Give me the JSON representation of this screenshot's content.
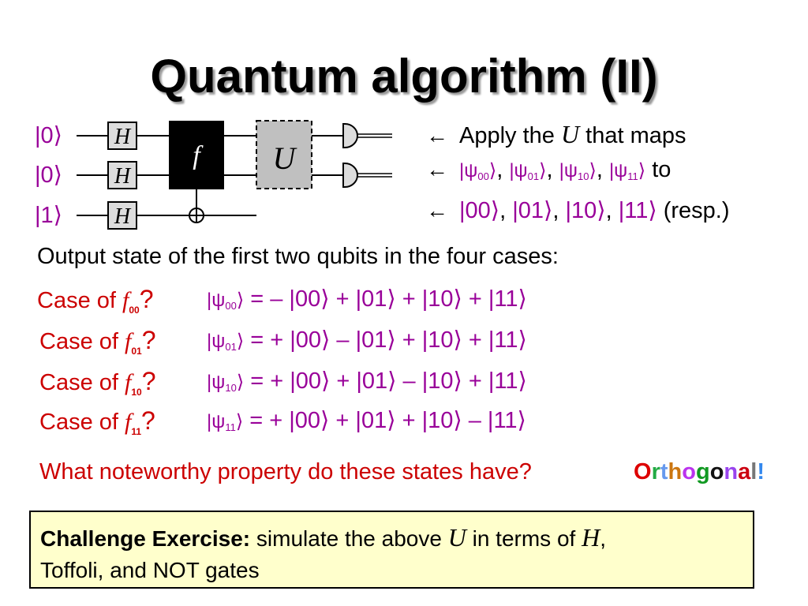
{
  "title": "Quantum algorithm (II)",
  "circuit": {
    "inputs": [
      "|0⟩",
      "|0⟩",
      "|1⟩"
    ],
    "hadamard_label": "H",
    "oracle_label": "f",
    "unitary_label": "U"
  },
  "notes": [
    {
      "parts": [
        {
          "t": "Apply the "
        },
        {
          "t": "U",
          "i": true
        },
        {
          "t": " that maps"
        }
      ]
    },
    {
      "parts": [
        {
          "t": "|ψ",
          "p": true
        },
        {
          "t": "00",
          "p": true,
          "s": true
        },
        {
          "t": "⟩",
          "p": true
        },
        {
          "t": ", "
        },
        {
          "t": "|ψ",
          "p": true
        },
        {
          "t": "01",
          "p": true,
          "s": true
        },
        {
          "t": "⟩",
          "p": true
        },
        {
          "t": ", "
        },
        {
          "t": "|ψ",
          "p": true
        },
        {
          "t": "10",
          "p": true,
          "s": true
        },
        {
          "t": "⟩",
          "p": true
        },
        {
          "t": ", "
        },
        {
          "t": "|ψ",
          "p": true
        },
        {
          "t": "11",
          "p": true,
          "s": true
        },
        {
          "t": "⟩",
          "p": true
        },
        {
          "t": "  to"
        }
      ]
    },
    {
      "parts": [
        {
          "t": "|00⟩",
          "p": true
        },
        {
          "t": ", "
        },
        {
          "t": "|01⟩",
          "p": true
        },
        {
          "t": ", "
        },
        {
          "t": "|10⟩",
          "p": true
        },
        {
          "t": ", "
        },
        {
          "t": "|11⟩",
          "p": true
        },
        {
          "t": "  (resp.)"
        }
      ]
    }
  ],
  "output_heading": "Output state of the first two qubits in the four cases:",
  "cases": [
    {
      "label": "Case of ",
      "f": "f",
      "sub": "00",
      "q": "?",
      "psi_sub": "00",
      "equation": " = – |00⟩ + |01⟩ + |10⟩ + |11⟩"
    },
    {
      "label": "Case of ",
      "f": "f",
      "sub": "01",
      "q": "?",
      "psi_sub": "01",
      "equation": " = + |00⟩ – |01⟩ + |10⟩ + |11⟩"
    },
    {
      "label": "Case of ",
      "f": "f",
      "sub": "10",
      "q": "?",
      "psi_sub": "10",
      "equation": " = + |00⟩ + |01⟩ – |10⟩ + |11⟩"
    },
    {
      "label": "Case of ",
      "f": "f",
      "sub": "11",
      "q": "?",
      "psi_sub": "11",
      "equation": " = + |00⟩ + |01⟩ + |10⟩ – |11⟩"
    }
  ],
  "question": "What noteworthy property do these states have?",
  "answer": {
    "letters": [
      "O",
      "r",
      "t",
      "h",
      "o",
      "g",
      "o",
      "n",
      "a",
      "l",
      "!"
    ],
    "colors": [
      "#dd0000",
      "#22aa44",
      "#6699ee",
      "#cc7711",
      "#bb33ee",
      "#119922",
      "#111111",
      "#9944ee",
      "#cc0011",
      "#777777",
      "#3388ee"
    ]
  },
  "challenge": {
    "bold": "Challenge Exercise:",
    "text1": " simulate the above ",
    "U": "U",
    "text2": " in terms of ",
    "H": "H",
    "text3": ",",
    "line2": "Toffoli, and NOT gates"
  },
  "colors": {
    "ket": "#990099",
    "case": "#cc0000",
    "box": "#ffffcc"
  }
}
